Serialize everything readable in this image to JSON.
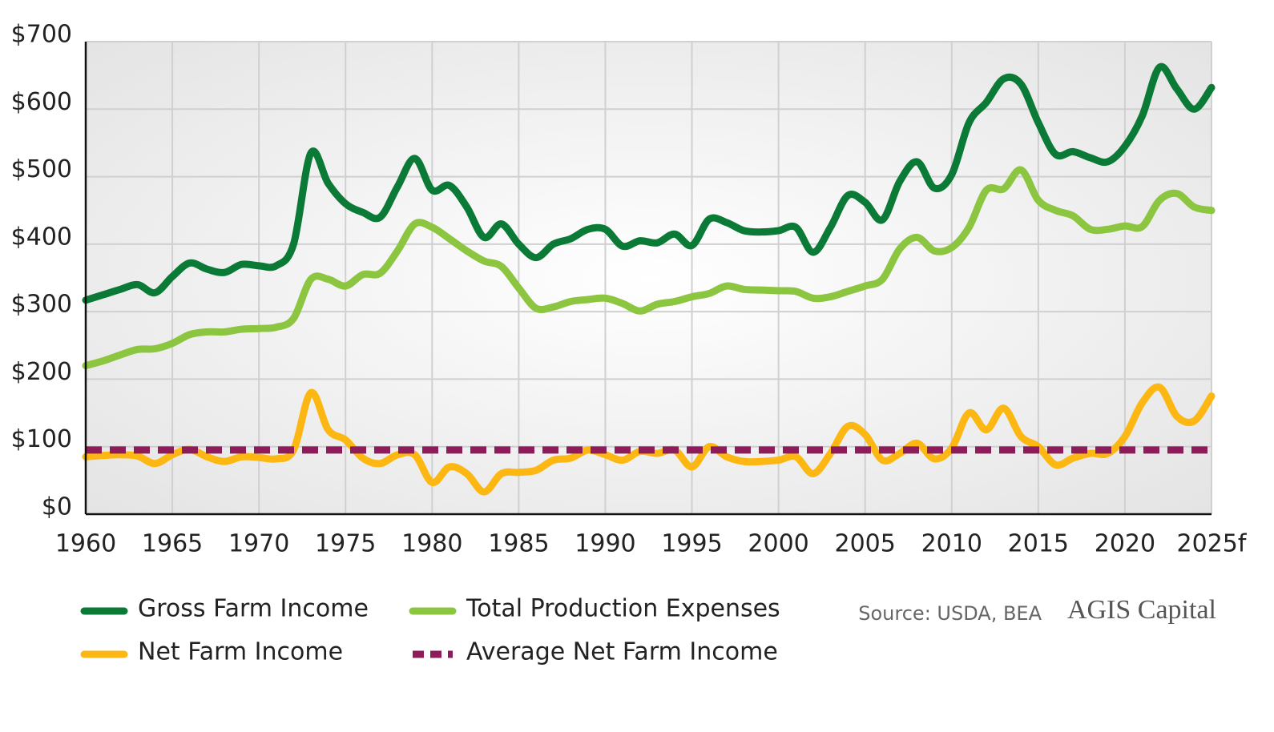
{
  "chart_data": {
    "type": "line",
    "x": [
      1960,
      1961,
      1962,
      1963,
      1964,
      1965,
      1966,
      1967,
      1968,
      1969,
      1970,
      1971,
      1972,
      1973,
      1974,
      1975,
      1976,
      1977,
      1978,
      1979,
      1980,
      1981,
      1982,
      1983,
      1984,
      1985,
      1986,
      1987,
      1988,
      1989,
      1990,
      1991,
      1992,
      1993,
      1994,
      1995,
      1996,
      1997,
      1998,
      1999,
      2000,
      2001,
      2002,
      2003,
      2004,
      2005,
      2006,
      2007,
      2008,
      2009,
      2010,
      2011,
      2012,
      2013,
      2014,
      2015,
      2016,
      2017,
      2018,
      2019,
      2020,
      2021,
      2022,
      2023,
      2024,
      2025
    ],
    "series": [
      {
        "name": "Gross Farm Income",
        "color": "#0a7a36",
        "dashed": false,
        "values": [
          317,
          325,
          333,
          340,
          328,
          352,
          372,
          363,
          358,
          370,
          368,
          368,
          400,
          535,
          490,
          460,
          447,
          440,
          485,
          527,
          480,
          487,
          455,
          410,
          430,
          400,
          380,
          400,
          408,
          422,
          422,
          397,
          405,
          402,
          415,
          398,
          437,
          432,
          420,
          418,
          420,
          425,
          388,
          425,
          472,
          462,
          436,
          493,
          522,
          483,
          503,
          580,
          610,
          645,
          637,
          580,
          533,
          537,
          528,
          522,
          545,
          590,
          662,
          630,
          600,
          632
        ]
      },
      {
        "name": "Total Production Expenses",
        "color": "#8cc540",
        "dashed": false,
        "values": [
          220,
          227,
          236,
          244,
          245,
          253,
          266,
          270,
          270,
          274,
          275,
          277,
          290,
          348,
          348,
          338,
          355,
          357,
          390,
          430,
          425,
          408,
          390,
          375,
          367,
          335,
          305,
          307,
          315,
          318,
          320,
          312,
          301,
          311,
          315,
          322,
          327,
          338,
          333,
          332,
          331,
          330,
          320,
          322,
          330,
          338,
          348,
          393,
          410,
          390,
          395,
          425,
          480,
          482,
          510,
          465,
          450,
          442,
          422,
          422,
          427,
          426,
          465,
          475,
          455,
          450
        ]
      },
      {
        "name": "Net Farm Income",
        "color": "#fdb713",
        "dashed": false,
        "values": [
          85,
          87,
          88,
          86,
          75,
          88,
          96,
          85,
          78,
          85,
          84,
          82,
          95,
          180,
          125,
          110,
          83,
          75,
          88,
          88,
          47,
          70,
          60,
          33,
          60,
          62,
          65,
          80,
          83,
          95,
          88,
          80,
          93,
          90,
          95,
          70,
          100,
          85,
          78,
          78,
          80,
          85,
          60,
          90,
          130,
          118,
          80,
          90,
          105,
          82,
          98,
          150,
          125,
          157,
          115,
          100,
          73,
          83,
          90,
          90,
          115,
          165,
          188,
          145,
          138,
          175
        ]
      },
      {
        "name": "Average Net Farm Income",
        "color": "#8e1b5a",
        "dashed": true,
        "values": [
          95,
          95,
          95,
          95,
          95,
          95,
          95,
          95,
          95,
          95,
          95,
          95,
          95,
          95,
          95,
          95,
          95,
          95,
          95,
          95,
          95,
          95,
          95,
          95,
          95,
          95,
          95,
          95,
          95,
          95,
          95,
          95,
          95,
          95,
          95,
          95,
          95,
          95,
          95,
          95,
          95,
          95,
          95,
          95,
          95,
          95,
          95,
          95,
          95,
          95,
          95,
          95,
          95,
          95,
          95,
          95,
          95,
          95,
          95,
          95,
          95,
          95,
          95,
          95,
          95,
          95
        ]
      }
    ],
    "xlim": [
      1960,
      2025
    ],
    "xticks": [
      1960,
      1965,
      1970,
      1975,
      1980,
      1985,
      1990,
      1995,
      2000,
      2005,
      2010,
      2015,
      2020,
      {
        "value": 2025,
        "label": "2025f"
      }
    ],
    "ylim": [
      0,
      700
    ],
    "yticks": [
      {
        "value": 0,
        "label": "$0"
      },
      {
        "value": 100,
        "label": "$100"
      },
      {
        "value": 200,
        "label": "$200"
      },
      {
        "value": 300,
        "label": "$300"
      },
      {
        "value": 400,
        "label": "$400"
      },
      {
        "value": 500,
        "label": "$500"
      },
      {
        "value": 600,
        "label": "$600"
      },
      {
        "value": 700,
        "label": "$700"
      }
    ],
    "grid": true,
    "source": "Source: USDA, BEA",
    "logo": "AGIS Capital"
  }
}
